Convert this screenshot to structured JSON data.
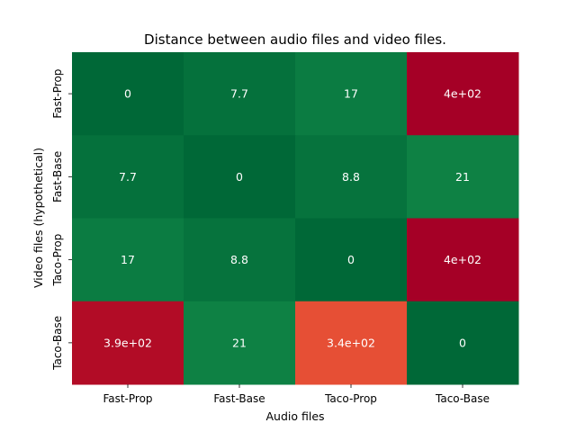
{
  "chart_data": {
    "type": "heatmap",
    "title": "Distance between audio files and video files.",
    "xlabel": "Audio files",
    "ylabel": "Video files (hypothetical)",
    "x_categories": [
      "Fast-Prop",
      "Fast-Base",
      "Taco-Prop",
      "Taco-Base"
    ],
    "y_categories": [
      "Fast-Prop",
      "Fast-Base",
      "Taco-Prop",
      "Taco-Base"
    ],
    "values": [
      [
        0,
        7.7,
        17,
        400
      ],
      [
        7.7,
        0,
        8.8,
        21
      ],
      [
        17,
        8.8,
        0,
        400
      ],
      [
        390,
        21,
        340,
        0
      ]
    ],
    "annotations": [
      [
        "0",
        "7.7",
        "17",
        "4e+02"
      ],
      [
        "7.7",
        "0",
        "8.8",
        "21"
      ],
      [
        "17",
        "8.8",
        "0",
        "4e+02"
      ],
      [
        "3.9e+02",
        "21",
        "3.4e+02",
        "0"
      ]
    ],
    "colormap": "RdYlGn_r",
    "grid": false,
    "colorbar": false,
    "colors": {
      "low": "#006837",
      "mid": "#ffffbf",
      "high": "#a50026"
    }
  }
}
